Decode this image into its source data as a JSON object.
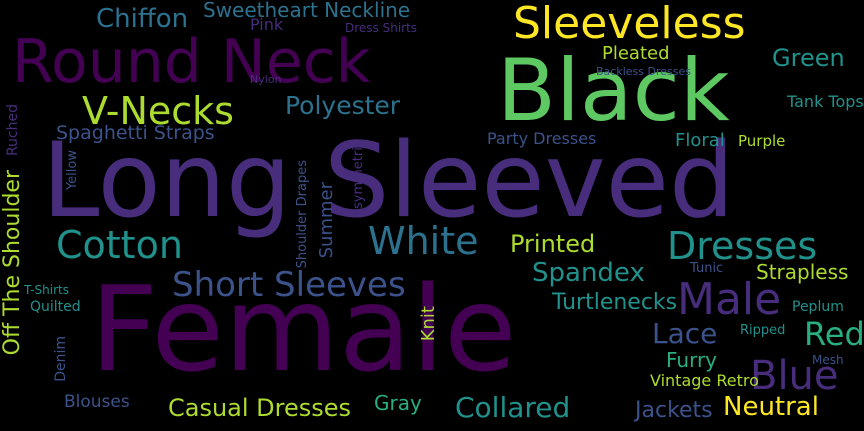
{
  "palette": {
    "purple": "#440154",
    "indigo": "#472d7b",
    "violet": "#3b528b",
    "blue": "#2c728e",
    "teal": "#21918c",
    "green": "#28ae80",
    "lime": "#5ec962",
    "yellowgreen": "#addc30",
    "yellow": "#fde725",
    "background": "#000000"
  },
  "words": [
    {
      "id": "female",
      "text": "Female",
      "color": "purple"
    },
    {
      "id": "long-sleeved",
      "text": "Long Sleeved",
      "color": "indigo"
    },
    {
      "id": "black",
      "text": "Black",
      "color": "lime"
    },
    {
      "id": "round-neck",
      "text": "Round Neck",
      "color": "purple"
    },
    {
      "id": "sleeveless",
      "text": "Sleeveless",
      "color": "yellow"
    },
    {
      "id": "v-necks",
      "text": "V-Necks",
      "color": "yellowgreen"
    },
    {
      "id": "chiffon",
      "text": "Chiffon",
      "color": "blue"
    },
    {
      "id": "sweetheart-neckline",
      "text": "Sweetheart Neckline",
      "color": "blue"
    },
    {
      "id": "polyester",
      "text": "Polyester",
      "color": "blue"
    },
    {
      "id": "pleated",
      "text": "Pleated",
      "color": "yellowgreen"
    },
    {
      "id": "green",
      "text": "Green",
      "color": "teal"
    },
    {
      "id": "cotton",
      "text": "Cotton",
      "color": "teal"
    },
    {
      "id": "white",
      "text": "White",
      "color": "blue"
    },
    {
      "id": "printed",
      "text": "Printed",
      "color": "yellowgreen"
    },
    {
      "id": "dresses",
      "text": "Dresses",
      "color": "teal"
    },
    {
      "id": "short-sleeves",
      "text": "Short Sleeves",
      "color": "violet"
    },
    {
      "id": "spandex",
      "text": "Spandex",
      "color": "teal"
    },
    {
      "id": "male",
      "text": "Male",
      "color": "indigo"
    },
    {
      "id": "strapless",
      "text": "Strapless",
      "color": "yellowgreen"
    },
    {
      "id": "turtlenecks",
      "text": "Turtlenecks",
      "color": "teal"
    },
    {
      "id": "lace",
      "text": "Lace",
      "color": "violet"
    },
    {
      "id": "red",
      "text": "Red",
      "color": "green"
    },
    {
      "id": "blue",
      "text": "Blue",
      "color": "indigo"
    },
    {
      "id": "casual-dresses",
      "text": "Casual Dresses",
      "color": "yellowgreen"
    },
    {
      "id": "collared",
      "text": "Collared",
      "color": "teal"
    },
    {
      "id": "jackets",
      "text": "Jackets",
      "color": "violet"
    },
    {
      "id": "neutral",
      "text": "Neutral",
      "color": "yellow"
    },
    {
      "id": "gray",
      "text": "Gray",
      "color": "green"
    },
    {
      "id": "blouses",
      "text": "Blouses",
      "color": "violet"
    },
    {
      "id": "spaghetti-straps",
      "text": "Spaghetti Straps",
      "color": "violet"
    },
    {
      "id": "floral",
      "text": "Floral",
      "color": "teal"
    },
    {
      "id": "party-dresses",
      "text": "Party Dresses",
      "color": "violet"
    },
    {
      "id": "purple",
      "text": "Purple",
      "color": "yellowgreen"
    },
    {
      "id": "tank-tops",
      "text": "Tank Tops",
      "color": "teal"
    },
    {
      "id": "backless-dresses",
      "text": "Backless Dresses",
      "color": "violet"
    },
    {
      "id": "pink",
      "text": "Pink",
      "color": "indigo"
    },
    {
      "id": "dress-shirts",
      "text": "Dress Shirts",
      "color": "indigo"
    },
    {
      "id": "summer",
      "text": "Summer",
      "color": "violet"
    },
    {
      "id": "shoulder-drapes",
      "text": "Shoulder Drapes",
      "color": "violet"
    },
    {
      "id": "asymmetric",
      "text": "Asymmetric",
      "color": "indigo"
    },
    {
      "id": "off-the-shoulder",
      "text": "Off The Shoulder",
      "color": "yellowgreen"
    },
    {
      "id": "ruched",
      "text": "Ruched",
      "color": "indigo"
    },
    {
      "id": "yellow",
      "text": "Yellow",
      "color": "violet"
    },
    {
      "id": "t-shirts",
      "text": "T-Shirts",
      "color": "teal"
    },
    {
      "id": "quilted",
      "text": "Quilted",
      "color": "teal"
    },
    {
      "id": "denim",
      "text": "Denim",
      "color": "violet"
    },
    {
      "id": "knit",
      "text": "Knit",
      "color": "yellowgreen"
    },
    {
      "id": "furry",
      "text": "Furry",
      "color": "green"
    },
    {
      "id": "vintage-retro",
      "text": "Vintage Retro",
      "color": "yellowgreen"
    },
    {
      "id": "peplum",
      "text": "Peplum",
      "color": "teal"
    },
    {
      "id": "tunic",
      "text": "Tunic",
      "color": "violet"
    },
    {
      "id": "ripped",
      "text": "Ripped",
      "color": "teal"
    },
    {
      "id": "mesh",
      "text": "Mesh",
      "color": "violet"
    },
    {
      "id": "nylon",
      "text": "Nylon",
      "color": "indigo"
    }
  ]
}
